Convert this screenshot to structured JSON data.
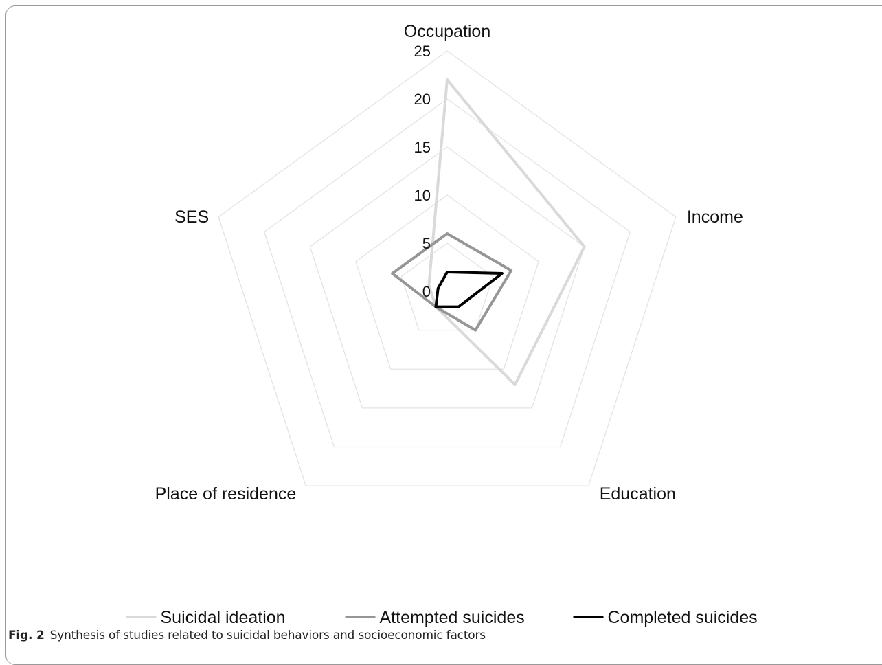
{
  "chart_data": {
    "type": "radar",
    "axes": [
      "Occupation",
      "Income",
      "Education",
      "Place of residence",
      "SES"
    ],
    "rlim": [
      0,
      25
    ],
    "ticks": [
      0,
      5,
      10,
      15,
      20,
      25
    ],
    "grid": true,
    "legend_position": "bottom",
    "series": [
      {
        "name": "Suicidal ideation",
        "values": [
          22,
          15,
          12,
          2,
          2
        ],
        "color": "#d9d9d9"
      },
      {
        "name": "Attempted suicides",
        "values": [
          6,
          7,
          5,
          2,
          6
        ],
        "color": "#969696"
      },
      {
        "name": "Completed suicides",
        "values": [
          2,
          6,
          2,
          2,
          1
        ],
        "color": "#000000"
      }
    ]
  },
  "caption": {
    "label": "Fig. 2",
    "text": "Synthesis of studies related to suicidal behaviors and socioeconomic factors"
  }
}
